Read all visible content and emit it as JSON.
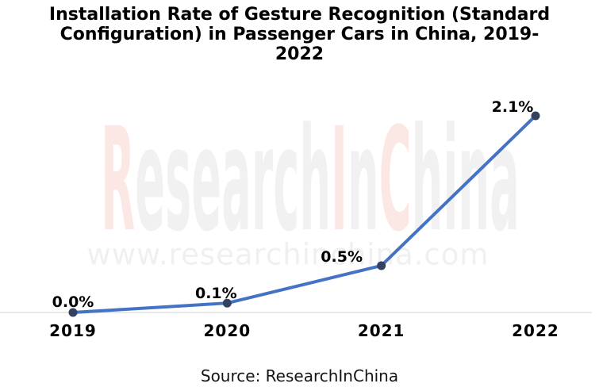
{
  "title_lines": [
    "Installation Rate of Gesture Recognition (Standard",
    "Configuration) in Passenger Cars in China, 2019-",
    "2022"
  ],
  "source_label": "Source: ResearchInChina",
  "watermark": {
    "main_text": "ResearchInChina",
    "url_text": "www.researchinchina.com"
  },
  "colors": {
    "line": "#4472c4",
    "marker": "#344260",
    "axis": "#d9d9d9",
    "label_text": "#000000",
    "watermark_gray": "#f1f1f1",
    "watermark_pink": "#fbe8e4"
  },
  "chart_data": {
    "type": "line",
    "title": "Installation Rate of Gesture Recognition (Standard Configuration) in Passenger Cars in China, 2019-2022",
    "categories": [
      "2019",
      "2020",
      "2021",
      "2022"
    ],
    "values": [
      0.0,
      0.1,
      0.5,
      2.1
    ],
    "point_labels": [
      "0.0%",
      "0.1%",
      "0.5%",
      "2.1%"
    ],
    "xlabel": "",
    "ylabel": "",
    "ylim": [
      0,
      2.3
    ],
    "grid": false,
    "legend": false,
    "y_axis_visible": false
  }
}
